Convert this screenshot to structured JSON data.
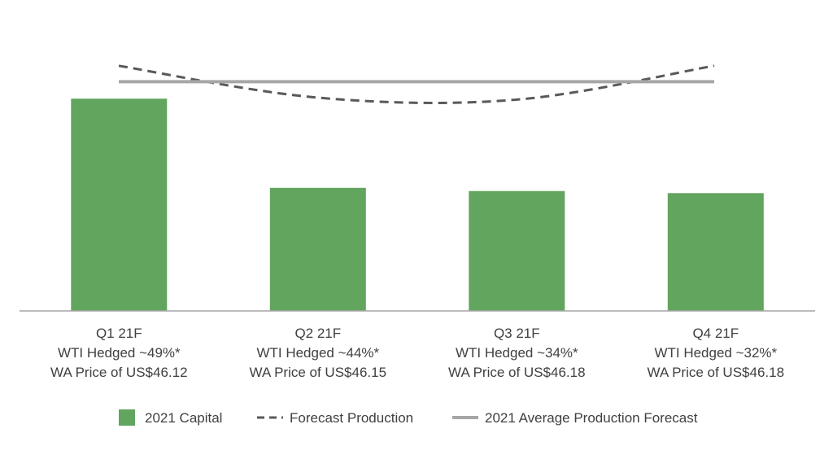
{
  "chart_data": {
    "type": "bar",
    "categories": [
      "Q1 21F",
      "Q2 21F",
      "Q3 21F",
      "Q4 21F"
    ],
    "category_notes": [
      [
        "WTI Hedged ~49%*",
        "WA Price of US$46.12"
      ],
      [
        "WTI Hedged ~44%*",
        "WA Price of US$46.15"
      ],
      [
        "WTI Hedged ~34%*",
        "WA Price of US$46.18"
      ],
      [
        "WTI Hedged ~32%*",
        "WA Price of US$46.18"
      ]
    ],
    "series": [
      {
        "name": "2021 Capital",
        "type": "bar",
        "values": [
          100,
          58,
          56.5,
          55.5
        ],
        "color": "#62a55e"
      },
      {
        "name": "Forecast Production",
        "type": "line",
        "style": "dashed",
        "values": [
          115.5,
          100.5,
          99.5,
          115.5
        ],
        "color": "#595959"
      },
      {
        "name": "2021 Average Production Forecast",
        "type": "line",
        "style": "solid",
        "values": [
          108,
          108,
          108,
          108
        ],
        "color": "#a6a6a6"
      }
    ],
    "ylim": [
      0,
      130
    ],
    "grid": false,
    "legend_position": "bottom"
  }
}
